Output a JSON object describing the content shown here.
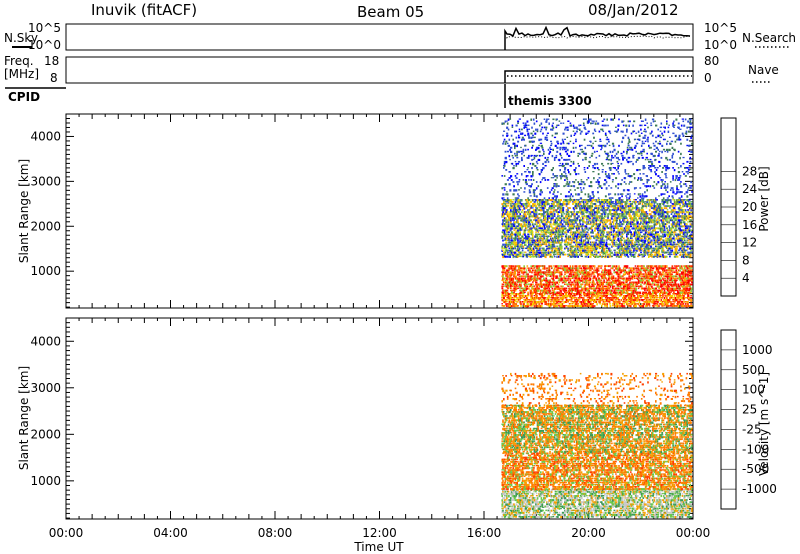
{
  "header": {
    "station": "Inuvik (fitACF)",
    "beam": "Beam 05",
    "date": "08/Jan/2012"
  },
  "status_panels": {
    "nsky_label": "N.Sky",
    "nsky_ticks": [
      "10^5",
      "10^0"
    ],
    "nsearch_label": "N.Search",
    "nsearch_ticks": [
      "10^5",
      "10^0"
    ],
    "freq_label_line1": "Freq.",
    "freq_label_line2": "[MHz]",
    "freq_ticks": [
      "18",
      "8"
    ],
    "nave_label": "Nave",
    "nave_ticks": [
      "80",
      "0"
    ],
    "cpid_label": "CPID",
    "cpid_value": "themis 3300"
  },
  "chart_data": [
    {
      "type": "heatmap",
      "title": "",
      "parameter": "Power",
      "ylabel": "Slant Range [km]",
      "xlabel": "Time UT",
      "xlim": [
        "00:00",
        "24:00"
      ],
      "ylim": [
        180,
        4500
      ],
      "yticks": [
        1000,
        2000,
        3000,
        4000
      ],
      "xtick_labels": [
        "00:00",
        "04:00",
        "08:00",
        "12:00",
        "16:00",
        "20:00",
        "00:00"
      ],
      "colorbar": {
        "label": "Power [dB]",
        "ticks": [
          4,
          8,
          12,
          16,
          20,
          24,
          28
        ],
        "colors": [
          "#0000ff",
          "#2f4fd0",
          "#3c7a55",
          "#4f9a5c",
          "#8fce3a",
          "#f5d300",
          "#ffa100",
          "#ff6a00",
          "#ff3000",
          "#ff0000"
        ]
      },
      "data_start_ut": "16:40",
      "data_end_ut": "24:00",
      "scatter_bands": [
        {
          "range_km": [
            200,
            500
          ],
          "dominant": "orange-red"
        },
        {
          "range_km": [
            500,
            1100
          ],
          "dominant": "red-orange"
        },
        {
          "range_km": [
            1300,
            2600
          ],
          "dominant": "green-blue"
        },
        {
          "range_km": [
            2600,
            4400
          ],
          "dominant": "blue-sparse"
        }
      ]
    },
    {
      "type": "heatmap",
      "title": "",
      "parameter": "Velocity",
      "ylabel": "Slant Range [km]",
      "xlabel": "Time UT",
      "xlim": [
        "00:00",
        "24:00"
      ],
      "ylim": [
        180,
        4500
      ],
      "yticks": [
        1000,
        2000,
        3000,
        4000
      ],
      "xtick_labels": [
        "00:00",
        "04:00",
        "08:00",
        "12:00",
        "16:00",
        "20:00",
        "00:00"
      ],
      "colorbar": {
        "label": "Velocity [m s^-1]",
        "ticks": [
          1000,
          500,
          100,
          25,
          -25,
          -100,
          -500,
          -1000
        ],
        "colors": [
          "#1f3fc8",
          "#2f78a6",
          "#3a9a55",
          "#6cc84a",
          "#c8c8c8",
          "#f5a000",
          "#ff7a00",
          "#ff4000",
          "#ff0000"
        ]
      },
      "data_start_ut": "16:40",
      "data_end_ut": "24:00",
      "scatter_bands": [
        {
          "range_km": [
            200,
            800
          ],
          "dominant": "gray-green"
        },
        {
          "range_km": [
            800,
            1600
          ],
          "dominant": "orange"
        },
        {
          "range_km": [
            1600,
            2600
          ],
          "dominant": "green-orange"
        },
        {
          "range_km": [
            2600,
            3300
          ],
          "dominant": "orange-sparse"
        }
      ]
    }
  ],
  "time_axis_label": "Time UT"
}
